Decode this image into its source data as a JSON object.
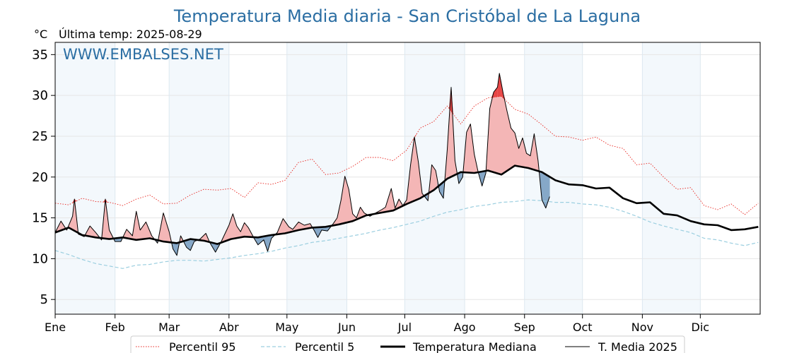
{
  "chart_data": {
    "type": "line",
    "title": "Temperatura Media diaria - San Cristóbal de La Laguna",
    "unit": "°C",
    "subtitle": "Última temp: 2025-08-29",
    "watermark": "WWW.EMBALSES.NET",
    "ylim": [
      3.2,
      36.5
    ],
    "yticks": [
      5,
      10,
      15,
      20,
      25,
      30,
      35
    ],
    "months": [
      "Ene",
      "Feb",
      "Mar",
      "Abr",
      "May",
      "Jun",
      "Jul",
      "Ago",
      "Sep",
      "Oct",
      "Nov",
      "Dic"
    ],
    "month_start_days": [
      0,
      31,
      59,
      90,
      120,
      151,
      181,
      212,
      243,
      273,
      304,
      334
    ],
    "days_in_year": 365,
    "grid": true,
    "legend_position": "bottom-center",
    "colors": {
      "p95": "#e8251f",
      "p5": "#9ccfe0",
      "median": "#000000",
      "current": "#000000",
      "above_median_fill": "#f4b6b6",
      "below_median_fill": "#86a8c8",
      "above_p95_fill": "#e84545",
      "month_band": "#f3f8fc",
      "title": "#2b6ea3"
    },
    "series": [
      {
        "key": "p95",
        "name": "Percentil 95",
        "style": "dotted",
        "points": [
          [
            0,
            16.8
          ],
          [
            7,
            16.6
          ],
          [
            14,
            17.4
          ],
          [
            21,
            17.0
          ],
          [
            28,
            16.9
          ],
          [
            35,
            16.5
          ],
          [
            42,
            17.3
          ],
          [
            49,
            17.8
          ],
          [
            56,
            16.7
          ],
          [
            63,
            16.8
          ],
          [
            70,
            17.8
          ],
          [
            77,
            18.5
          ],
          [
            84,
            18.4
          ],
          [
            91,
            18.6
          ],
          [
            98,
            17.5
          ],
          [
            105,
            19.3
          ],
          [
            112,
            19.1
          ],
          [
            119,
            19.6
          ],
          [
            126,
            21.8
          ],
          [
            133,
            22.2
          ],
          [
            140,
            20.3
          ],
          [
            147,
            20.5
          ],
          [
            154,
            21.3
          ],
          [
            161,
            22.4
          ],
          [
            168,
            22.4
          ],
          [
            175,
            22.0
          ],
          [
            182,
            23.3
          ],
          [
            189,
            26.0
          ],
          [
            196,
            26.8
          ],
          [
            203,
            28.7
          ],
          [
            210,
            26.5
          ],
          [
            217,
            28.7
          ],
          [
            224,
            29.7
          ],
          [
            231,
            29.9
          ],
          [
            238,
            28.3
          ],
          [
            245,
            27.7
          ],
          [
            252,
            26.4
          ],
          [
            259,
            25.0
          ],
          [
            266,
            24.9
          ],
          [
            273,
            24.5
          ],
          [
            280,
            24.9
          ],
          [
            287,
            23.9
          ],
          [
            294,
            23.5
          ],
          [
            301,
            21.5
          ],
          [
            308,
            21.7
          ],
          [
            315,
            20.0
          ],
          [
            322,
            18.5
          ],
          [
            329,
            18.7
          ],
          [
            336,
            16.5
          ],
          [
            343,
            16.0
          ],
          [
            350,
            16.7
          ],
          [
            357,
            15.4
          ],
          [
            364,
            16.8
          ]
        ]
      },
      {
        "key": "p5",
        "name": "Percentil 5",
        "style": "dashed",
        "points": [
          [
            0,
            11.0
          ],
          [
            7,
            10.5
          ],
          [
            14,
            9.9
          ],
          [
            21,
            9.4
          ],
          [
            28,
            9.1
          ],
          [
            35,
            8.8
          ],
          [
            42,
            9.2
          ],
          [
            49,
            9.3
          ],
          [
            56,
            9.6
          ],
          [
            63,
            9.8
          ],
          [
            70,
            9.8
          ],
          [
            77,
            9.7
          ],
          [
            84,
            9.9
          ],
          [
            91,
            10.1
          ],
          [
            98,
            10.4
          ],
          [
            105,
            10.6
          ],
          [
            112,
            10.9
          ],
          [
            119,
            11.3
          ],
          [
            126,
            11.6
          ],
          [
            133,
            12.0
          ],
          [
            140,
            12.2
          ],
          [
            147,
            12.5
          ],
          [
            154,
            12.8
          ],
          [
            161,
            13.1
          ],
          [
            168,
            13.5
          ],
          [
            175,
            13.8
          ],
          [
            182,
            14.2
          ],
          [
            189,
            14.6
          ],
          [
            196,
            15.2
          ],
          [
            203,
            15.7
          ],
          [
            210,
            16.0
          ],
          [
            217,
            16.4
          ],
          [
            224,
            16.6
          ],
          [
            231,
            16.9
          ],
          [
            238,
            17.0
          ],
          [
            245,
            17.2
          ],
          [
            252,
            17.1
          ],
          [
            259,
            16.9
          ],
          [
            266,
            16.9
          ],
          [
            273,
            16.7
          ],
          [
            280,
            16.6
          ],
          [
            287,
            16.3
          ],
          [
            294,
            15.8
          ],
          [
            301,
            15.2
          ],
          [
            308,
            14.5
          ],
          [
            315,
            14.0
          ],
          [
            322,
            13.6
          ],
          [
            329,
            13.2
          ],
          [
            336,
            12.5
          ],
          [
            343,
            12.3
          ],
          [
            350,
            11.9
          ],
          [
            357,
            11.6
          ],
          [
            364,
            12.0
          ]
        ]
      },
      {
        "key": "median",
        "name": "Temperatura Mediana",
        "style": "solid-thick",
        "points": [
          [
            0,
            13.2
          ],
          [
            7,
            13.8
          ],
          [
            14,
            12.9
          ],
          [
            21,
            12.6
          ],
          [
            28,
            12.4
          ],
          [
            35,
            12.6
          ],
          [
            42,
            12.3
          ],
          [
            49,
            12.5
          ],
          [
            56,
            12.1
          ],
          [
            63,
            11.9
          ],
          [
            70,
            12.4
          ],
          [
            77,
            12.2
          ],
          [
            84,
            11.8
          ],
          [
            91,
            12.4
          ],
          [
            98,
            12.7
          ],
          [
            105,
            12.6
          ],
          [
            112,
            12.9
          ],
          [
            119,
            13.1
          ],
          [
            126,
            13.5
          ],
          [
            133,
            13.8
          ],
          [
            140,
            13.9
          ],
          [
            147,
            14.2
          ],
          [
            154,
            14.6
          ],
          [
            161,
            15.3
          ],
          [
            168,
            15.6
          ],
          [
            175,
            15.9
          ],
          [
            182,
            16.7
          ],
          [
            189,
            17.4
          ],
          [
            196,
            18.4
          ],
          [
            203,
            19.8
          ],
          [
            210,
            20.6
          ],
          [
            217,
            20.5
          ],
          [
            224,
            20.8
          ],
          [
            231,
            20.3
          ],
          [
            238,
            21.4
          ],
          [
            245,
            21.1
          ],
          [
            252,
            20.6
          ],
          [
            259,
            19.6
          ],
          [
            266,
            19.1
          ],
          [
            273,
            19.0
          ],
          [
            280,
            18.6
          ],
          [
            287,
            18.7
          ],
          [
            294,
            17.4
          ],
          [
            301,
            16.8
          ],
          [
            308,
            16.9
          ],
          [
            315,
            15.5
          ],
          [
            322,
            15.3
          ],
          [
            329,
            14.6
          ],
          [
            336,
            14.2
          ],
          [
            343,
            14.1
          ],
          [
            350,
            13.5
          ],
          [
            357,
            13.6
          ],
          [
            364,
            13.9
          ]
        ]
      },
      {
        "key": "current",
        "name": "T. Media 2025",
        "style": "solid-thin",
        "points": [
          [
            0,
            13.2
          ],
          [
            3,
            14.6
          ],
          [
            6,
            13.5
          ],
          [
            9,
            15.2
          ],
          [
            10,
            17.3
          ],
          [
            12,
            13.0
          ],
          [
            15,
            12.7
          ],
          [
            18,
            14.0
          ],
          [
            21,
            13.2
          ],
          [
            24,
            12.3
          ],
          [
            26,
            17.3
          ],
          [
            28,
            13.5
          ],
          [
            31,
            12.1
          ],
          [
            34,
            12.1
          ],
          [
            37,
            13.6
          ],
          [
            40,
            12.8
          ],
          [
            42,
            15.8
          ],
          [
            44,
            13.5
          ],
          [
            47,
            14.5
          ],
          [
            50,
            12.8
          ],
          [
            53,
            11.9
          ],
          [
            56,
            15.6
          ],
          [
            59,
            13.3
          ],
          [
            61,
            11.2
          ],
          [
            63,
            10.4
          ],
          [
            65,
            12.8
          ],
          [
            68,
            11.4
          ],
          [
            70,
            11.0
          ],
          [
            72,
            12.1
          ],
          [
            75,
            12.4
          ],
          [
            78,
            13.1
          ],
          [
            80,
            12.0
          ],
          [
            83,
            10.8
          ],
          [
            86,
            12.1
          ],
          [
            90,
            14.1
          ],
          [
            92,
            15.5
          ],
          [
            94,
            14.0
          ],
          [
            96,
            13.3
          ],
          [
            98,
            14.4
          ],
          [
            100,
            13.8
          ],
          [
            103,
            12.5
          ],
          [
            105,
            11.7
          ],
          [
            108,
            12.3
          ],
          [
            110,
            10.9
          ],
          [
            112,
            12.5
          ],
          [
            115,
            13.2
          ],
          [
            118,
            14.9
          ],
          [
            121,
            13.9
          ],
          [
            123,
            13.6
          ],
          [
            126,
            14.5
          ],
          [
            129,
            14.1
          ],
          [
            132,
            14.3
          ],
          [
            134,
            13.5
          ],
          [
            136,
            12.6
          ],
          [
            138,
            13.5
          ],
          [
            141,
            13.4
          ],
          [
            144,
            14.3
          ],
          [
            146,
            15.0
          ],
          [
            148,
            17.2
          ],
          [
            150,
            20.1
          ],
          [
            152,
            18.5
          ],
          [
            154,
            15.5
          ],
          [
            156,
            15.0
          ],
          [
            158,
            16.3
          ],
          [
            160,
            15.6
          ],
          [
            163,
            15.2
          ],
          [
            166,
            15.6
          ],
          [
            169,
            16.0
          ],
          [
            171,
            16.3
          ],
          [
            174,
            18.6
          ],
          [
            176,
            16.2
          ],
          [
            178,
            17.3
          ],
          [
            180,
            16.5
          ],
          [
            182,
            17.2
          ],
          [
            184,
            21.5
          ],
          [
            186,
            24.9
          ],
          [
            188,
            21.9
          ],
          [
            190,
            18.0
          ],
          [
            193,
            17.1
          ],
          [
            195,
            21.5
          ],
          [
            197,
            20.8
          ],
          [
            199,
            18.2
          ],
          [
            201,
            17.4
          ],
          [
            203,
            23.4
          ],
          [
            205,
            31.0
          ],
          [
            207,
            22.0
          ],
          [
            209,
            19.2
          ],
          [
            211,
            20.0
          ],
          [
            213,
            25.5
          ],
          [
            215,
            26.5
          ],
          [
            217,
            22.8
          ],
          [
            219,
            20.6
          ],
          [
            221,
            18.9
          ],
          [
            223,
            20.5
          ],
          [
            225,
            28.4
          ],
          [
            227,
            30.4
          ],
          [
            229,
            31.0
          ],
          [
            230,
            32.7
          ],
          [
            232,
            30.2
          ],
          [
            234,
            28.0
          ],
          [
            236,
            26.0
          ],
          [
            238,
            25.4
          ],
          [
            240,
            23.5
          ],
          [
            242,
            24.8
          ],
          [
            244,
            22.9
          ],
          [
            246,
            22.6
          ],
          [
            248,
            25.3
          ],
          [
            250,
            22.0
          ],
          [
            252,
            17.2
          ],
          [
            254,
            16.2
          ],
          [
            256,
            17.6
          ]
        ]
      }
    ]
  },
  "legend": [
    {
      "key": "p95",
      "label": "Percentil 95"
    },
    {
      "key": "p5",
      "label": "Percentil 5"
    },
    {
      "key": "median",
      "label": "Temperatura Mediana"
    },
    {
      "key": "current",
      "label": "T. Media 2025"
    }
  ]
}
